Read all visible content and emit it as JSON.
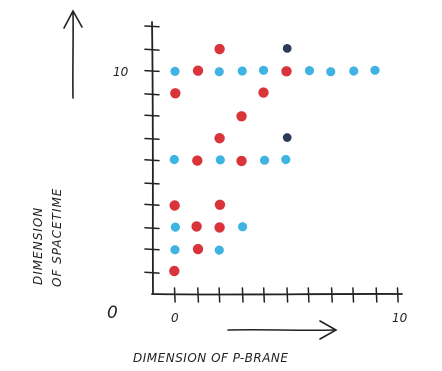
{
  "chart_data": {
    "type": "scatter",
    "title": "",
    "xlabel": "DIMENSION OF P-BRANE",
    "ylabel_lines": [
      "DIMENSION",
      "OF SPACETIME"
    ],
    "origin_label": "0",
    "x_tick_labels": [
      {
        "value": 0,
        "label": "0"
      },
      {
        "value": 10,
        "label": "10"
      }
    ],
    "y_tick_labels": [
      {
        "value": 10,
        "label": "10"
      }
    ],
    "xlim": [
      0,
      10
    ],
    "ylim": [
      0,
      11
    ],
    "grid": false,
    "colors": {
      "red": "#d9343a",
      "blue": "#3fb3e2",
      "dark": "#2d3a5a",
      "ink": "#222222"
    },
    "points": [
      {
        "x": 0,
        "y": 1,
        "color": "red"
      },
      {
        "x": 0,
        "y": 2,
        "color": "blue"
      },
      {
        "x": 1,
        "y": 2,
        "color": "red"
      },
      {
        "x": 2,
        "y": 2,
        "color": "blue"
      },
      {
        "x": 0,
        "y": 3,
        "color": "blue"
      },
      {
        "x": 1,
        "y": 3,
        "color": "red"
      },
      {
        "x": 2,
        "y": 3,
        "color": "red"
      },
      {
        "x": 3,
        "y": 3,
        "color": "blue"
      },
      {
        "x": 0,
        "y": 4,
        "color": "red"
      },
      {
        "x": 2,
        "y": 4,
        "color": "red"
      },
      {
        "x": 0,
        "y": 6,
        "color": "blue"
      },
      {
        "x": 1,
        "y": 6,
        "color": "red"
      },
      {
        "x": 2,
        "y": 6,
        "color": "blue"
      },
      {
        "x": 3,
        "y": 6,
        "color": "red"
      },
      {
        "x": 4,
        "y": 6,
        "color": "blue"
      },
      {
        "x": 5,
        "y": 6,
        "color": "blue"
      },
      {
        "x": 2,
        "y": 7,
        "color": "red"
      },
      {
        "x": 5,
        "y": 7,
        "color": "dark"
      },
      {
        "x": 3,
        "y": 8,
        "color": "red"
      },
      {
        "x": 0,
        "y": 9,
        "color": "red"
      },
      {
        "x": 4,
        "y": 9,
        "color": "red"
      },
      {
        "x": 0,
        "y": 10,
        "color": "blue"
      },
      {
        "x": 1,
        "y": 10,
        "color": "red"
      },
      {
        "x": 2,
        "y": 10,
        "color": "blue"
      },
      {
        "x": 3,
        "y": 10,
        "color": "blue"
      },
      {
        "x": 4,
        "y": 10,
        "color": "blue"
      },
      {
        "x": 5,
        "y": 10,
        "color": "red"
      },
      {
        "x": 6,
        "y": 10,
        "color": "blue"
      },
      {
        "x": 7,
        "y": 10,
        "color": "blue"
      },
      {
        "x": 8,
        "y": 10,
        "color": "blue"
      },
      {
        "x": 9,
        "y": 10,
        "color": "blue"
      },
      {
        "x": 2,
        "y": 11,
        "color": "red"
      },
      {
        "x": 5,
        "y": 11,
        "color": "dark"
      }
    ]
  }
}
